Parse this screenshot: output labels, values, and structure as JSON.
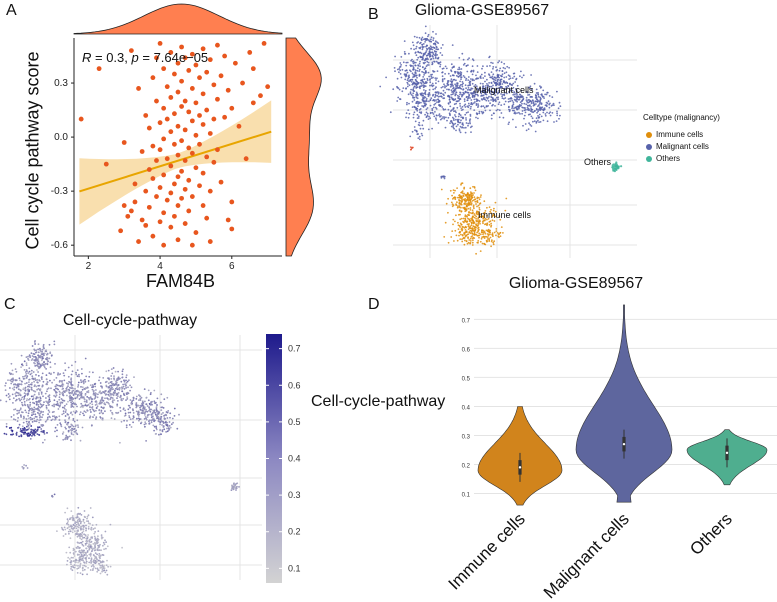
{
  "chart_data": [
    {
      "panel": "A",
      "type": "scatter",
      "xlabel": "FAM84B",
      "ylabel": "Cell cycle pathway score",
      "xticks": [
        2,
        4,
        6
      ],
      "yticks": [
        -0.6,
        -0.3,
        0.0,
        0.3
      ],
      "ytick_labels": [
        "-0.6",
        "-0.3",
        "0.0",
        "0.3"
      ],
      "xlim": [
        1.6,
        7.4
      ],
      "ylim": [
        -0.66,
        0.55
      ],
      "annotation_r": "R",
      "annotation_r_val": " = 0.3, ",
      "annotation_p": "p",
      "annotation_p_val": " = 7.64e−05",
      "regression": {
        "slope": 0.062,
        "intercept": -0.41,
        "color": "#E8A500",
        "band": "#F8D9A0"
      },
      "point_color": "#E8561E",
      "marginal_color": "#FF7F50",
      "points": [
        [
          1.8,
          0.1
        ],
        [
          2.3,
          0.38
        ],
        [
          2.5,
          -0.15
        ],
        [
          2.9,
          -0.52
        ],
        [
          3.0,
          -0.03
        ],
        [
          3.1,
          -0.44
        ],
        [
          3.2,
          -0.41
        ],
        [
          3.3,
          -0.26
        ],
        [
          3.3,
          -0.36
        ],
        [
          3.4,
          -0.58
        ],
        [
          3.4,
          0.27
        ],
        [
          3.5,
          -0.08
        ],
        [
          3.5,
          -0.46
        ],
        [
          3.6,
          0.12
        ],
        [
          3.6,
          -0.3
        ],
        [
          3.6,
          -0.49
        ],
        [
          3.7,
          0.05
        ],
        [
          3.7,
          -0.18
        ],
        [
          3.7,
          -0.39
        ],
        [
          3.8,
          0.33
        ],
        [
          3.8,
          -0.05
        ],
        [
          3.8,
          -0.23
        ],
        [
          3.8,
          -0.55
        ],
        [
          3.9,
          0.44
        ],
        [
          3.9,
          0.2
        ],
        [
          3.9,
          -0.13
        ],
        [
          3.9,
          -0.33
        ],
        [
          4.0,
          0.52
        ],
        [
          4.0,
          0.08
        ],
        [
          4.0,
          -0.07
        ],
        [
          4.0,
          -0.28
        ],
        [
          4.0,
          -0.47
        ],
        [
          4.1,
          0.38
        ],
        [
          4.1,
          0.16
        ],
        [
          4.1,
          -0.01
        ],
        [
          4.1,
          -0.21
        ],
        [
          4.1,
          -0.42
        ],
        [
          4.1,
          -0.6
        ],
        [
          4.2,
          0.28
        ],
        [
          4.2,
          0.1
        ],
        [
          4.2,
          -0.12
        ],
        [
          4.2,
          -0.35
        ],
        [
          4.3,
          0.47
        ],
        [
          4.3,
          0.22
        ],
        [
          4.3,
          0.03
        ],
        [
          4.3,
          -0.16
        ],
        [
          4.3,
          -0.31
        ],
        [
          4.3,
          -0.5
        ],
        [
          4.4,
          0.35
        ],
        [
          4.4,
          0.13
        ],
        [
          4.4,
          -0.04
        ],
        [
          4.4,
          -0.26
        ],
        [
          4.4,
          -0.44
        ],
        [
          4.5,
          0.41
        ],
        [
          4.5,
          0.25
        ],
        [
          4.5,
          0.06
        ],
        [
          4.5,
          -0.1
        ],
        [
          4.5,
          -0.22
        ],
        [
          4.5,
          -0.38
        ],
        [
          4.5,
          -0.57
        ],
        [
          4.6,
          0.5
        ],
        [
          4.6,
          0.31
        ],
        [
          4.6,
          0.17
        ],
        [
          4.6,
          -0.02
        ],
        [
          4.6,
          -0.19
        ],
        [
          4.6,
          -0.34
        ],
        [
          4.7,
          0.44
        ],
        [
          4.7,
          0.2
        ],
        [
          4.7,
          0.04
        ],
        [
          4.7,
          -0.13
        ],
        [
          4.7,
          -0.29
        ],
        [
          4.7,
          -0.48
        ],
        [
          4.8,
          0.37
        ],
        [
          4.8,
          0.14
        ],
        [
          4.8,
          -0.06
        ],
        [
          4.8,
          -0.24
        ],
        [
          4.8,
          -0.41
        ],
        [
          4.9,
          0.46
        ],
        [
          4.9,
          0.27
        ],
        [
          4.9,
          0.09
        ],
        [
          4.9,
          -0.09
        ],
        [
          4.9,
          -0.33
        ],
        [
          5.0,
          0.4
        ],
        [
          5.0,
          0.19
        ],
        [
          5.0,
          0.01
        ],
        [
          5.0,
          -0.17
        ],
        [
          5.0,
          -0.53
        ],
        [
          5.1,
          0.33
        ],
        [
          5.1,
          0.12
        ],
        [
          5.1,
          -0.04
        ],
        [
          5.1,
          -0.27
        ],
        [
          5.2,
          0.49
        ],
        [
          5.2,
          0.24
        ],
        [
          5.2,
          0.07
        ],
        [
          5.2,
          -0.2
        ],
        [
          5.2,
          -0.38
        ],
        [
          5.3,
          0.36
        ],
        [
          5.3,
          0.15
        ],
        [
          5.3,
          -0.11
        ],
        [
          5.3,
          -0.45
        ],
        [
          5.4,
          0.43
        ],
        [
          5.4,
          0.02
        ],
        [
          5.4,
          -0.3
        ],
        [
          5.5,
          0.29
        ],
        [
          5.5,
          0.1
        ],
        [
          5.5,
          -0.14
        ],
        [
          5.6,
          0.51
        ],
        [
          5.6,
          0.21
        ],
        [
          5.6,
          -0.07
        ],
        [
          5.7,
          0.34
        ],
        [
          5.7,
          -0.25
        ],
        [
          5.8,
          0.45
        ],
        [
          5.8,
          0.11
        ],
        [
          5.9,
          0.26
        ],
        [
          5.9,
          -0.46
        ],
        [
          6.0,
          0.16
        ],
        [
          6.0,
          -0.36
        ],
        [
          6.1,
          0.41
        ],
        [
          6.2,
          0.06
        ],
        [
          6.3,
          0.3
        ],
        [
          6.4,
          -0.12
        ],
        [
          6.5,
          0.47
        ],
        [
          6.6,
          0.19
        ],
        [
          6.8,
          0.23
        ],
        [
          6.9,
          0.52
        ],
        [
          7.0,
          0.28
        ],
        [
          3.2,
          0.48
        ],
        [
          5.4,
          -0.58
        ],
        [
          6.0,
          -0.51
        ],
        [
          4.9,
          -0.6
        ],
        [
          3.0,
          -0.38
        ],
        [
          6.6,
          0.38
        ]
      ]
    },
    {
      "panel": "B",
      "type": "scatter",
      "title": "Glioma-GSE89567",
      "legend_title": "Celltype (malignancy)",
      "legend_position": "right",
      "grid": true,
      "categories": [
        {
          "name": "Immune cells",
          "color": "#E08E0B"
        },
        {
          "name": "Malignant cells",
          "color": "#5762AA"
        },
        {
          "name": "Others",
          "color": "#40B59B"
        }
      ],
      "cluster_labels": [
        "Malignant cells",
        "Others",
        "Immune cells"
      ]
    },
    {
      "panel": "C",
      "type": "scatter",
      "title": "Cell-cycle-pathway",
      "colorbar_ticks": [
        "0.1",
        "0.2",
        "0.3",
        "0.4",
        "0.5",
        "0.6",
        "0.7"
      ],
      "colorbar_range": [
        0.06,
        0.74
      ],
      "colorbar_low": "#D3D3D3",
      "colorbar_high": "#1E1A8C",
      "grid": true
    },
    {
      "panel": "D",
      "type": "violin",
      "title": "Glioma-GSE89567",
      "ylabel": "Cell-cycle-pathway",
      "categories": [
        "Immune cells",
        "Malignant cells",
        "Others"
      ],
      "colors": [
        "#D1841C",
        "#5E669E",
        "#4FAE8F"
      ],
      "yticks": [
        "0.1",
        "0.2",
        "0.3",
        "0.4",
        "0.5",
        "0.6",
        "0.7"
      ],
      "ylim": [
        0.05,
        0.76
      ],
      "ranges": [
        [
          0.06,
          0.4
        ],
        [
          0.07,
          0.75
        ],
        [
          0.13,
          0.32
        ]
      ],
      "medians": [
        0.19,
        0.27,
        0.24
      ]
    }
  ],
  "panels": {
    "a": "A",
    "b": "B",
    "c": "C",
    "d": "D"
  }
}
